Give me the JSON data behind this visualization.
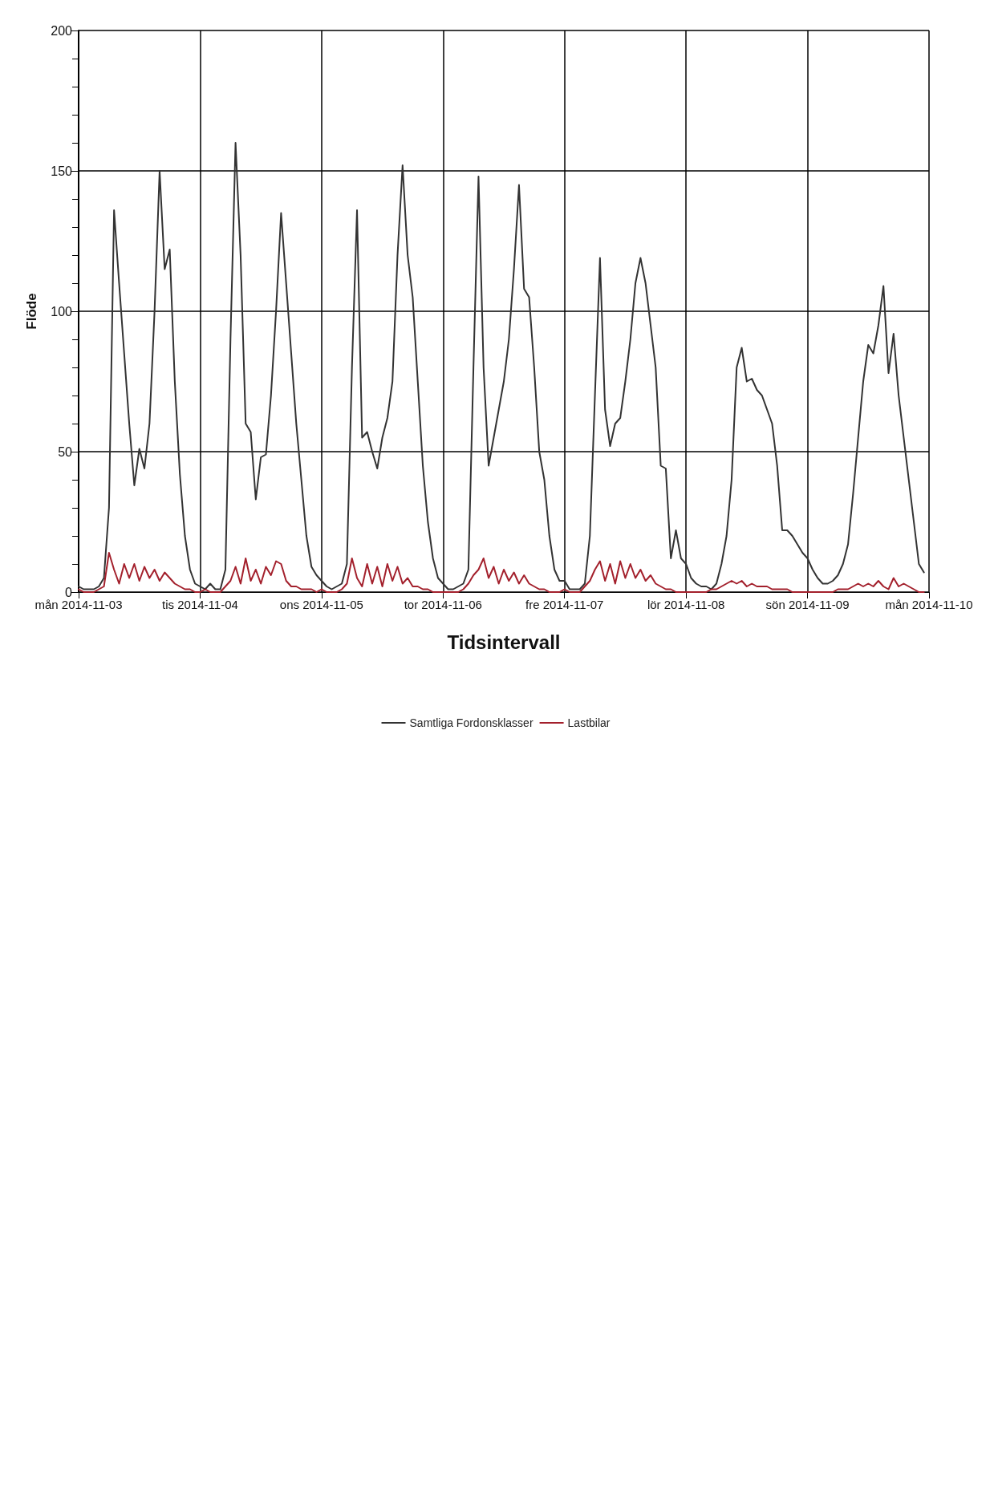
{
  "chart_data": {
    "type": "line",
    "xlabel": "Tidsintervall",
    "ylabel": "Flöde",
    "x": [
      "2014-11-03T00:00",
      "2014-11-03T01:00",
      "2014-11-03T02:00",
      "2014-11-03T03:00",
      "2014-11-03T04:00",
      "2014-11-03T05:00",
      "2014-11-03T06:00",
      "2014-11-03T07:00",
      "2014-11-03T08:00",
      "2014-11-03T09:00",
      "2014-11-03T10:00",
      "2014-11-03T11:00",
      "2014-11-03T12:00",
      "2014-11-03T13:00",
      "2014-11-03T14:00",
      "2014-11-03T15:00",
      "2014-11-03T16:00",
      "2014-11-03T17:00",
      "2014-11-03T18:00",
      "2014-11-03T19:00",
      "2014-11-03T20:00",
      "2014-11-03T21:00",
      "2014-11-03T22:00",
      "2014-11-03T23:00",
      "2014-11-04T00:00",
      "2014-11-04T01:00",
      "2014-11-04T02:00",
      "2014-11-04T03:00",
      "2014-11-04T04:00",
      "2014-11-04T05:00",
      "2014-11-04T06:00",
      "2014-11-04T07:00",
      "2014-11-04T08:00",
      "2014-11-04T09:00",
      "2014-11-04T10:00",
      "2014-11-04T11:00",
      "2014-11-04T12:00",
      "2014-11-04T13:00",
      "2014-11-04T14:00",
      "2014-11-04T15:00",
      "2014-11-04T16:00",
      "2014-11-04T17:00",
      "2014-11-04T18:00",
      "2014-11-04T19:00",
      "2014-11-04T20:00",
      "2014-11-04T21:00",
      "2014-11-04T22:00",
      "2014-11-04T23:00",
      "2014-11-05T00:00",
      "2014-11-05T01:00",
      "2014-11-05T02:00",
      "2014-11-05T03:00",
      "2014-11-05T04:00",
      "2014-11-05T05:00",
      "2014-11-05T06:00",
      "2014-11-05T07:00",
      "2014-11-05T08:00",
      "2014-11-05T09:00",
      "2014-11-05T10:00",
      "2014-11-05T11:00",
      "2014-11-05T12:00",
      "2014-11-05T13:00",
      "2014-11-05T14:00",
      "2014-11-05T15:00",
      "2014-11-05T16:00",
      "2014-11-05T17:00",
      "2014-11-05T18:00",
      "2014-11-05T19:00",
      "2014-11-05T20:00",
      "2014-11-05T21:00",
      "2014-11-05T22:00",
      "2014-11-05T23:00",
      "2014-11-06T00:00",
      "2014-11-06T01:00",
      "2014-11-06T02:00",
      "2014-11-06T03:00",
      "2014-11-06T04:00",
      "2014-11-06T05:00",
      "2014-11-06T06:00",
      "2014-11-06T07:00",
      "2014-11-06T08:00",
      "2014-11-06T09:00",
      "2014-11-06T10:00",
      "2014-11-06T11:00",
      "2014-11-06T12:00",
      "2014-11-06T13:00",
      "2014-11-06T14:00",
      "2014-11-06T15:00",
      "2014-11-06T16:00",
      "2014-11-06T17:00",
      "2014-11-06T18:00",
      "2014-11-06T19:00",
      "2014-11-06T20:00",
      "2014-11-06T21:00",
      "2014-11-06T22:00",
      "2014-11-06T23:00",
      "2014-11-07T00:00",
      "2014-11-07T01:00",
      "2014-11-07T02:00",
      "2014-11-07T03:00",
      "2014-11-07T04:00",
      "2014-11-07T05:00",
      "2014-11-07T06:00",
      "2014-11-07T07:00",
      "2014-11-07T08:00",
      "2014-11-07T09:00",
      "2014-11-07T10:00",
      "2014-11-07T11:00",
      "2014-11-07T12:00",
      "2014-11-07T13:00",
      "2014-11-07T14:00",
      "2014-11-07T15:00",
      "2014-11-07T16:00",
      "2014-11-07T17:00",
      "2014-11-07T18:00",
      "2014-11-07T19:00",
      "2014-11-07T20:00",
      "2014-11-07T21:00",
      "2014-11-07T22:00",
      "2014-11-07T23:00",
      "2014-11-08T00:00",
      "2014-11-08T01:00",
      "2014-11-08T02:00",
      "2014-11-08T03:00",
      "2014-11-08T04:00",
      "2014-11-08T05:00",
      "2014-11-08T06:00",
      "2014-11-08T07:00",
      "2014-11-08T08:00",
      "2014-11-08T09:00",
      "2014-11-08T10:00",
      "2014-11-08T11:00",
      "2014-11-08T12:00",
      "2014-11-08T13:00",
      "2014-11-08T14:00",
      "2014-11-08T15:00",
      "2014-11-08T16:00",
      "2014-11-08T17:00",
      "2014-11-08T18:00",
      "2014-11-08T19:00",
      "2014-11-08T20:00",
      "2014-11-08T21:00",
      "2014-11-08T22:00",
      "2014-11-08T23:00",
      "2014-11-09T00:00",
      "2014-11-09T01:00",
      "2014-11-09T02:00",
      "2014-11-09T03:00",
      "2014-11-09T04:00",
      "2014-11-09T05:00",
      "2014-11-09T06:00",
      "2014-11-09T07:00",
      "2014-11-09T08:00",
      "2014-11-09T09:00",
      "2014-11-09T10:00",
      "2014-11-09T11:00",
      "2014-11-09T12:00",
      "2014-11-09T13:00",
      "2014-11-09T14:00",
      "2014-11-09T15:00",
      "2014-11-09T16:00",
      "2014-11-09T17:00",
      "2014-11-09T18:00",
      "2014-11-09T19:00",
      "2014-11-09T20:00",
      "2014-11-09T21:00",
      "2014-11-09T22:00",
      "2014-11-09T23:00"
    ],
    "series": [
      {
        "name": "Samtliga Fordonsklasser",
        "color": "#333333",
        "values": [
          2,
          1,
          1,
          1,
          2,
          5,
          30,
          136,
          110,
          85,
          60,
          38,
          51,
          44,
          60,
          100,
          150,
          115,
          122,
          75,
          42,
          20,
          8,
          3,
          2,
          1,
          3,
          1,
          1,
          8,
          90,
          160,
          120,
          60,
          57,
          33,
          48,
          49,
          70,
          100,
          135,
          110,
          85,
          60,
          40,
          20,
          9,
          6,
          4,
          2,
          1,
          2,
          3,
          10,
          80,
          136,
          55,
          57,
          50,
          44,
          55,
          62,
          75,
          120,
          152,
          120,
          105,
          75,
          45,
          25,
          12,
          5,
          3,
          1,
          1,
          2,
          3,
          8,
          80,
          148,
          80,
          45,
          55,
          65,
          75,
          90,
          115,
          145,
          108,
          105,
          80,
          50,
          40,
          20,
          8,
          4,
          4,
          1,
          1,
          1,
          3,
          20,
          70,
          119,
          65,
          52,
          60,
          62,
          75,
          90,
          110,
          119,
          110,
          95,
          80,
          45,
          44,
          12,
          22,
          12,
          10,
          5,
          3,
          2,
          2,
          1,
          3,
          10,
          20,
          40,
          80,
          87,
          75,
          76,
          72,
          70,
          65,
          60,
          45,
          22,
          22,
          20,
          17,
          14,
          12,
          8,
          5,
          3,
          3,
          4,
          6,
          10,
          17,
          35,
          55,
          75,
          88,
          85,
          95,
          109,
          78,
          92,
          70,
          55,
          40,
          25,
          10,
          7
        ]
      },
      {
        "name": "Lastbilar",
        "color": "#a3202c",
        "values": [
          1,
          0,
          0,
          0,
          1,
          2,
          14,
          8,
          3,
          10,
          5,
          10,
          4,
          9,
          5,
          8,
          4,
          7,
          5,
          3,
          2,
          1,
          1,
          0,
          0,
          1,
          0,
          0,
          0,
          2,
          4,
          9,
          3,
          12,
          4,
          8,
          3,
          9,
          6,
          11,
          10,
          4,
          2,
          2,
          1,
          1,
          1,
          0,
          1,
          0,
          0,
          0,
          1,
          3,
          12,
          5,
          2,
          10,
          3,
          9,
          2,
          10,
          4,
          9,
          3,
          5,
          2,
          2,
          1,
          1,
          0,
          0,
          0,
          0,
          0,
          0,
          1,
          3,
          6,
          8,
          12,
          5,
          9,
          3,
          8,
          4,
          7,
          3,
          6,
          3,
          2,
          1,
          1,
          0,
          0,
          0,
          1,
          0,
          0,
          0,
          2,
          4,
          8,
          11,
          4,
          10,
          3,
          11,
          5,
          10,
          5,
          8,
          4,
          6,
          3,
          2,
          1,
          1,
          0,
          0,
          0,
          0,
          0,
          0,
          0,
          1,
          1,
          2,
          3,
          4,
          3,
          4,
          2,
          3,
          2,
          2,
          2,
          1,
          1,
          1,
          1,
          0,
          0,
          0,
          0,
          0,
          0,
          0,
          0,
          0,
          1,
          1,
          1,
          2,
          3,
          2,
          3,
          2,
          4,
          2,
          1,
          5,
          2,
          3,
          2,
          1,
          0,
          0
        ]
      }
    ],
    "xlim": [
      "2014-11-03",
      "2014-11-10"
    ],
    "xticks": [
      {
        "value": "2014-11-03",
        "label": "mån 2014-11-03"
      },
      {
        "value": "2014-11-04",
        "label": "tis 2014-11-04"
      },
      {
        "value": "2014-11-05",
        "label": "ons 2014-11-05"
      },
      {
        "value": "2014-11-06",
        "label": "tor 2014-11-06"
      },
      {
        "value": "2014-11-07",
        "label": "fre 2014-11-07"
      },
      {
        "value": "2014-11-08",
        "label": "lör 2014-11-08"
      },
      {
        "value": "2014-11-09",
        "label": "sön 2014-11-09"
      },
      {
        "value": "2014-11-10",
        "label": "mån 2014-11-10"
      }
    ],
    "ylim": [
      0,
      200
    ],
    "yticks": [
      0,
      50,
      100,
      150,
      200
    ],
    "grid": true,
    "legend": "bottom",
    "marker": "none",
    "line_style": "solid"
  }
}
